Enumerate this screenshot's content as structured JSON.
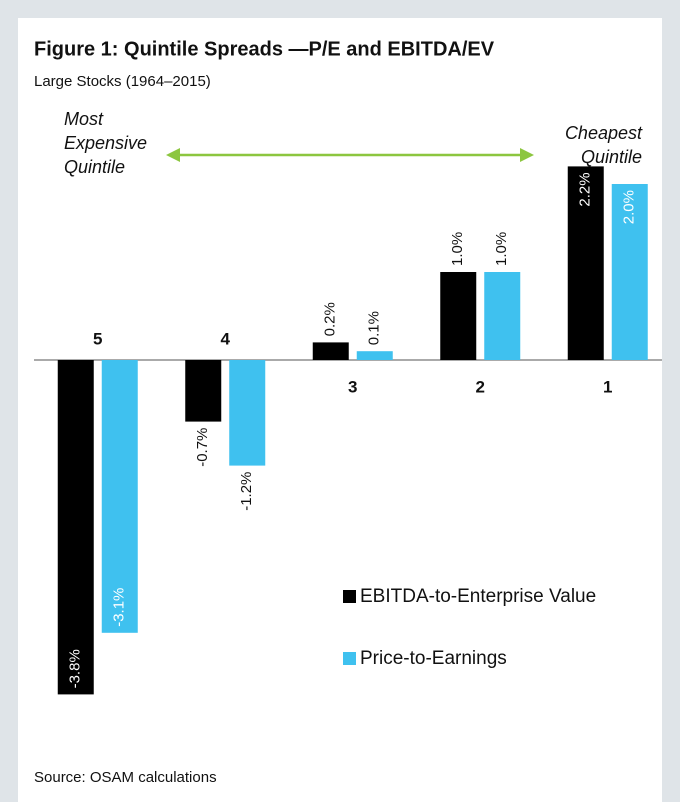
{
  "chart_data": {
    "type": "bar",
    "title": "Figure 1: Quintile Spreads —P/E and EBITDA/EV",
    "subtitle": "Large Stocks (1964–2015)",
    "source": "Source: OSAM calculations",
    "annotations": {
      "left": [
        "Most",
        "Expensive",
        "Quintile"
      ],
      "right": [
        "Cheapest",
        "Quintile"
      ]
    },
    "categories": [
      "5",
      "4",
      "3",
      "2",
      "1"
    ],
    "series": [
      {
        "name": "EBITDA-to-Enterprise Value",
        "color": "#000000",
        "values": [
          -3.8,
          -0.7,
          0.2,
          1.0,
          2.2
        ],
        "value_labels": [
          "-3.8%",
          "-0.7%",
          "0.2%",
          "1.0%",
          "2.2%"
        ]
      },
      {
        "name": "Price-to-Earnings",
        "color": "#3fc1ef",
        "values": [
          -3.1,
          -1.2,
          0.1,
          1.0,
          2.0
        ],
        "value_labels": [
          "-3.1%",
          "-1.2%",
          "0.1%",
          "1.0%",
          "2.0%"
        ]
      }
    ]
  }
}
